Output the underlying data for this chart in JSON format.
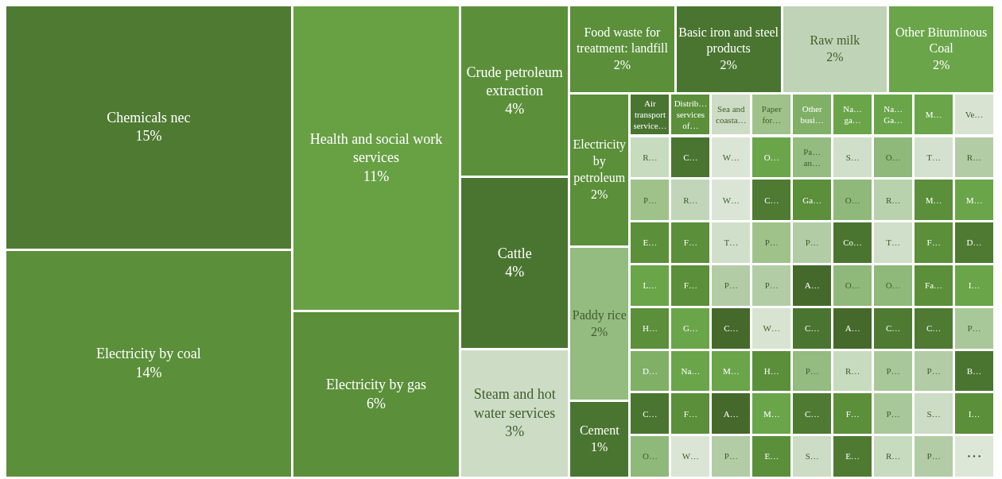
{
  "chart_data": {
    "type": "other",
    "categories": [
      "Chemicals nec",
      "Electricity by coal",
      "Health and social work services",
      "Electricity by gas",
      "Crude petroleum extraction",
      "Cattle",
      "Steam and hot water services",
      "Food waste for treatment: landfill",
      "Basic iron and steel products",
      "Raw milk",
      "Other Bituminous Coal",
      "Electricity by petroleum",
      "Paddy rice",
      "Cement",
      "Air transport service…",
      "Distrib… services of…",
      "Sea and coasta…",
      "Paper for…",
      "Other busi…",
      "Na… ga…",
      "Na… Ga…",
      "M…",
      "Ve…",
      "R…",
      "C…",
      "W…",
      "O…",
      "Pa… an…",
      "S…",
      "O…",
      "T…",
      "R…",
      "P…",
      "R…",
      "W…",
      "C…",
      "Ga…",
      "O…",
      "R…",
      "M…",
      "M…",
      "E…",
      "F…",
      "T…",
      "P…",
      "P…",
      "Co…",
      "T…",
      "F…",
      "D…",
      "L…",
      "F…",
      "P…",
      "P…",
      "A…",
      "O…",
      "O…",
      "Fa…",
      "I…",
      "H…",
      "G…",
      "C…",
      "W…",
      "C…",
      "A…",
      "C…",
      "C…",
      "P…",
      "D…",
      "Na…",
      "M…",
      "H…",
      "P…",
      "R…",
      "P…",
      "P…",
      "B…",
      "C…",
      "F…",
      "A…",
      "M…",
      "C…",
      "F…",
      "P…",
      "S…",
      "I…",
      "O…",
      "W…",
      "P…",
      "E…",
      "S…",
      "E…",
      "R…",
      "P…",
      "• • •"
    ],
    "values": [
      15,
      14,
      11,
      6,
      4,
      4,
      3,
      2,
      2,
      2,
      2,
      2,
      2,
      1,
      null,
      null,
      null,
      null,
      null,
      null,
      null,
      null,
      null,
      null,
      null,
      null,
      null,
      null,
      null,
      null,
      null,
      null,
      null,
      null,
      null,
      null,
      null,
      null,
      null,
      null,
      null,
      null,
      null,
      null,
      null,
      null,
      null,
      null,
      null,
      null,
      null,
      null,
      null,
      null,
      null,
      null,
      null,
      null,
      null,
      null,
      null,
      null,
      null,
      null,
      null,
      null,
      null,
      null,
      null,
      null,
      null,
      null,
      null,
      null,
      null,
      null,
      null,
      null,
      null,
      null,
      null,
      null,
      null,
      null,
      null,
      null,
      null,
      null,
      null,
      null,
      null,
      null,
      null,
      null,
      null
    ],
    "value_labels": [
      "15%",
      "14%",
      "11%",
      "6%",
      "4%",
      "4%",
      "3%",
      "2%",
      "2%",
      "2%",
      "2%",
      "2%",
      "2%",
      "1%",
      null,
      null,
      null,
      null,
      null,
      null,
      null,
      null,
      null,
      null,
      null,
      null,
      null,
      null,
      null,
      null,
      null,
      null,
      null,
      null,
      null,
      null,
      null,
      null,
      null,
      null,
      null,
      null,
      null,
      null,
      null,
      null,
      null,
      null,
      null,
      null,
      null,
      null,
      null,
      null,
      null,
      null,
      null,
      null,
      null,
      null,
      null,
      null,
      null,
      null,
      null,
      null,
      null,
      null,
      null,
      null,
      null,
      null,
      null,
      null,
      null,
      null,
      null,
      null,
      null,
      null,
      null,
      null,
      null,
      null,
      null,
      null,
      null,
      null,
      null,
      null,
      null,
      null,
      null,
      null,
      null
    ],
    "colors": [
      "#4e7a32",
      "#5b8f3a",
      "#68a044",
      "#5b8f3a",
      "#5b8f3a",
      "#4a7530",
      "#cddcc5",
      "#5b8f3a",
      "#4a7530",
      "#bfd3b6",
      "#6aa54a",
      "#5b8f3a",
      "#94bb80",
      "#4a7530",
      "#4a7530",
      "#5b8f3a",
      "#cddcc5",
      "#9fc28b",
      "#7fb066",
      "#6aa54a",
      "#6aa54a",
      "#6aa54a",
      "#d8e3d2",
      "#c7dbbf",
      "#4a7530",
      "#dbe5d6",
      "#6aa54a",
      "#94bb80",
      "#d0dfc9",
      "#8fb97a",
      "#d5e1cf",
      "#b2cda5",
      "#9fc28b",
      "#c1d6b8",
      "#dbe5d6",
      "#4e7a32",
      "#5b8f3a",
      "#8fb97a",
      "#b9d2ae",
      "#5b8f3a",
      "#6aa54a",
      "#5b8f3a",
      "#5b8f3a",
      "#d0dfc9",
      "#9fc28b",
      "#b2cda5",
      "#4a7530",
      "#d0dfc9",
      "#5b8f3a",
      "#4e7a32",
      "#6aa54a",
      "#5b8f3a",
      "#b2cda5",
      "#b2cda5",
      "#45692b",
      "#8fb97a",
      "#8fb97a",
      "#5b8f3a",
      "#6aa54a",
      "#5b8f3a",
      "#6aa54a",
      "#45692b",
      "#d8e3d2",
      "#4a7530",
      "#45692b",
      "#4e7a32",
      "#4e7a32",
      "#a8c89a",
      "#7fb066",
      "#6aa54a",
      "#6aa54a",
      "#5b8f3a",
      "#94bb80",
      "#c7dbbf",
      "#a8c89a",
      "#b2cda5",
      "#4a7530",
      "#4a7530",
      "#5b8f3a",
      "#45692b",
      "#6aa54a",
      "#4e7a32",
      "#5b8f3a",
      "#a8c89a",
      "#cddcc5",
      "#5b8f3a",
      "#8fb97a",
      "#dbe5d6",
      "#b2cda5",
      "#5b8f3a",
      "#cddcc5",
      "#4e7a32",
      "#c7dbbf",
      "#b2cda5",
      "#dde7d8"
    ]
  }
}
